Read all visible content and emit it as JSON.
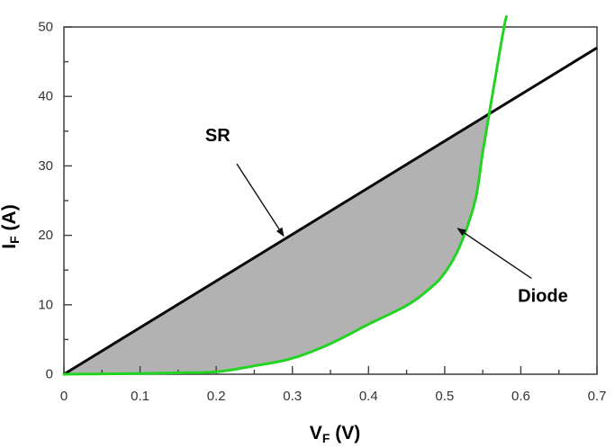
{
  "chart_data": {
    "type": "line",
    "title": "",
    "xlabel": {
      "symbol": "V",
      "subscript": "F",
      "unit": " (V)"
    },
    "ylabel": {
      "symbol": "I",
      "subscript": "F",
      "unit": " (A)"
    },
    "xlim": [
      0,
      0.7
    ],
    "ylim": [
      0,
      50
    ],
    "grid": false,
    "x_major_ticks": [
      0,
      0.1,
      0.2,
      0.3,
      0.4,
      0.5,
      0.6,
      0.7
    ],
    "x_major_tick_labels": [
      "0",
      "0.1",
      "0.2",
      "0.3",
      "0.4",
      "0.5",
      "0.6",
      "0.7"
    ],
    "x_minor_ticks": [
      0.05,
      0.15,
      0.25,
      0.35,
      0.45,
      0.55,
      0.65
    ],
    "y_major_ticks": [
      0,
      10,
      20,
      30,
      40,
      50
    ],
    "y_major_tick_labels": [
      "0",
      "10",
      "20",
      "30",
      "40",
      "50"
    ],
    "y_minor_ticks": [
      5,
      15,
      25,
      35,
      45
    ],
    "series": [
      {
        "name": "SR",
        "style": "straight",
        "color": "#0a0a0a",
        "stroke_width": 3,
        "x": [
          0,
          0.7
        ],
        "y": [
          0,
          47
        ]
      },
      {
        "name": "Diode",
        "style": "smooth",
        "color": "#22d422",
        "stroke_width": 3,
        "x": [
          0,
          0.02,
          0.05,
          0.1,
          0.15,
          0.2,
          0.25,
          0.3,
          0.35,
          0.4,
          0.45,
          0.48,
          0.5,
          0.52,
          0.54,
          0.55,
          0.56,
          0.57,
          0.578,
          0.581
        ],
        "y": [
          0,
          0.02,
          0.05,
          0.1,
          0.2,
          0.35,
          1.2,
          2.3,
          4.4,
          7.2,
          9.9,
          12.3,
          14.6,
          18.5,
          25.0,
          32.0,
          38.5,
          45.0,
          50.0,
          51.5
        ]
      }
    ],
    "fill_between": {
      "upper_series": "SR",
      "lower_series": "Diode",
      "from_x": 0,
      "to_intersection": true,
      "intersection_approx": [
        0.555,
        37
      ],
      "color": "#b2b2b2"
    },
    "annotations": [
      {
        "text": "SR",
        "text_at": [
          0.202,
          34.3
        ],
        "arrow_from": [
          0.227,
          30.3
        ],
        "arrow_to": [
          0.2885,
          19.9
        ]
      },
      {
        "text": "Diode",
        "text_at": [
          0.629,
          11.2
        ],
        "arrow_from": [
          0.614,
          13.8
        ],
        "arrow_to": [
          0.517,
          21.0
        ]
      }
    ],
    "frame": {
      "line_color": "#3f3f3f",
      "tick_color": "#3f3f3f",
      "tick_label_color": "#333333",
      "ticks_inward": true
    }
  }
}
